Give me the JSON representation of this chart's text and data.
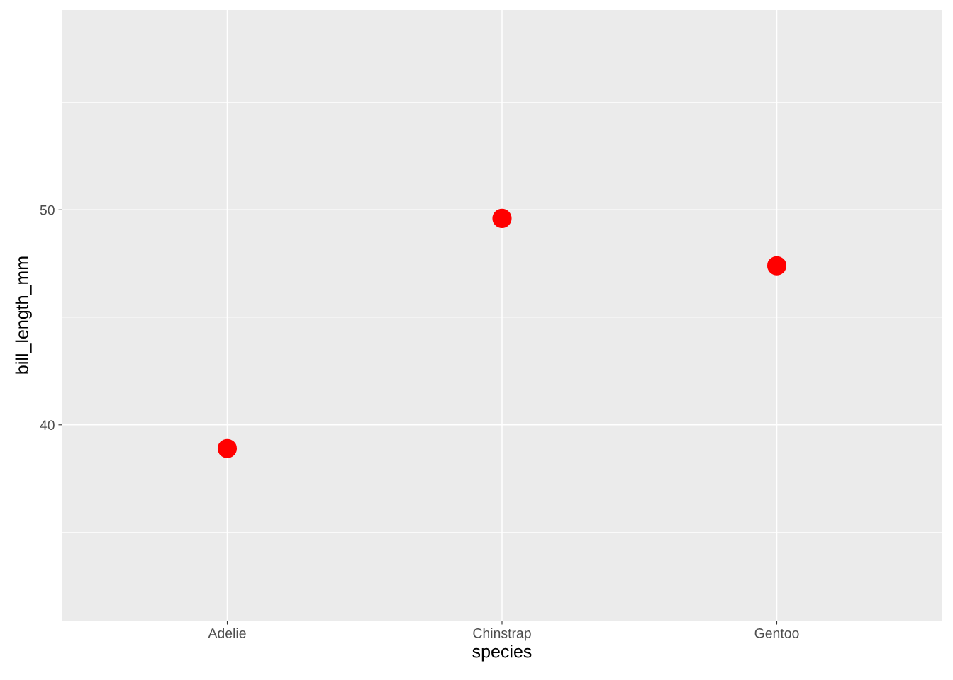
{
  "chart_data": {
    "type": "scatter",
    "xlabel": "species",
    "ylabel": "bill_length_mm",
    "categories": [
      "Adelie",
      "Chinstrap",
      "Gentoo"
    ],
    "series": [
      {
        "color": "#ff0000",
        "values": [
          38.9,
          49.6,
          47.4
        ]
      }
    ],
    "ylim": [
      30.9,
      59.3
    ],
    "yticks": [
      40,
      50
    ],
    "grid": true,
    "marker": "circle"
  }
}
